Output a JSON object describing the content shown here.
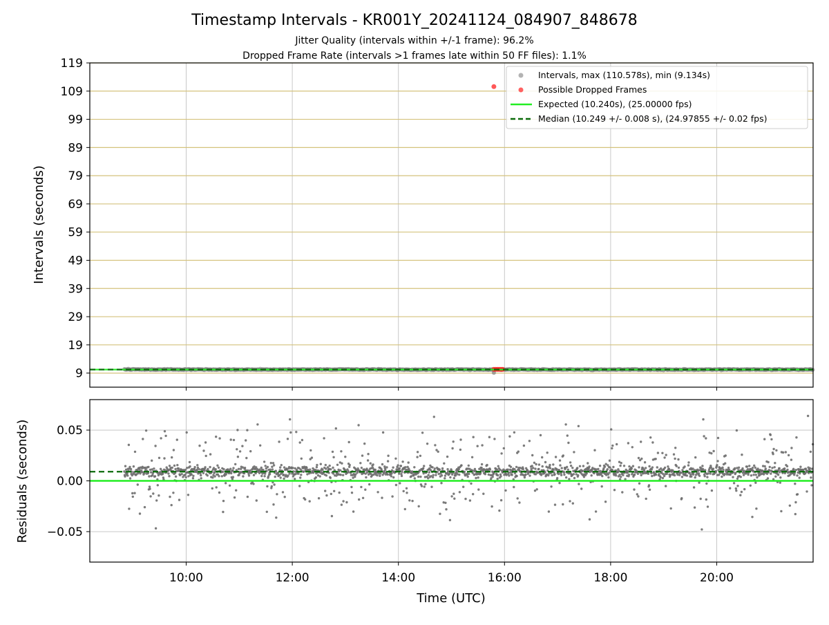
{
  "figure": {
    "title": "Timestamp Intervals - KR001Y_20241124_084907_848678",
    "subtitle_jitter": "Jitter Quality (intervals within +/-1 frame): 96.2%",
    "subtitle_dropped": "Dropped Frame Rate (intervals >1 frames late within 50 FF files): 1.1%"
  },
  "colors": {
    "intervals": "#808080",
    "dropped": "#ff2020",
    "expected": "#22ee22",
    "median": "#0a6a0a",
    "hgrid_top": "#d4c27c",
    "grid": "#c8c8c8"
  },
  "chart_data": [
    {
      "type": "scatter",
      "panel": "intervals",
      "ylabel": "Intervals (seconds)",
      "xlabel": "",
      "x_unit": "Time (UTC)",
      "xlim": [
        "08:11",
        "21:49"
      ],
      "ylim": [
        4,
        119
      ],
      "y_ticks": [
        "9",
        "19",
        "29",
        "39",
        "49",
        "59",
        "69",
        "79",
        "89",
        "99",
        "109",
        "119"
      ],
      "x_ticks": [
        "10:00",
        "12:00",
        "14:00",
        "16:00",
        "18:00",
        "20:00"
      ],
      "grid": "vertical gridlines at x ticks; horizontal gridlines at y ticks",
      "legend_position": "top-right",
      "legend": [
        "Intervals, max (110.578s), min (9.134s)",
        "Possible Dropped Frames",
        "Expected (10.240s), (25.00000 fps)",
        "Median (10.249 +/- 0.008 s), (24.97855 +/- 0.02 fps)"
      ],
      "series": [
        {
          "name": "Intervals, max (110.578s), min (9.134s)",
          "kind": "scatter",
          "x_range": [
            "08:50",
            "21:49"
          ],
          "y_typical": 10.249,
          "y_max": 110.578,
          "y_min": 9.134,
          "y_spread": 0.02
        },
        {
          "name": "Possible Dropped Frames",
          "kind": "scatter",
          "points": [
            {
              "x": "15:48",
              "y": 110.578
            },
            {
              "x": "15:48",
              "y": 10.3
            },
            {
              "x": "15:50",
              "y": 10.3
            },
            {
              "x": "15:52",
              "y": 10.3
            },
            {
              "x": "15:54",
              "y": 10.3
            },
            {
              "x": "15:56",
              "y": 10.3
            },
            {
              "x": "15:58",
              "y": 10.3
            }
          ]
        },
        {
          "name": "Expected (10.240s), (25.00000 fps)",
          "kind": "hline",
          "y": 10.24,
          "style": "solid"
        },
        {
          "name": "Median (10.249 +/- 0.008 s), (24.97855 +/- 0.02 fps)",
          "kind": "hline",
          "y": 10.249,
          "style": "dashed"
        }
      ]
    },
    {
      "type": "scatter",
      "panel": "residuals",
      "ylabel": "Residuals (seconds)",
      "xlabel": "Time (UTC)",
      "xlim": [
        "08:11",
        "21:49"
      ],
      "ylim": [
        -0.08,
        0.08
      ],
      "y_ticks": [
        "0.05",
        "0.00",
        "−0.05"
      ],
      "y_tick_values": [
        0.05,
        0.0,
        -0.05
      ],
      "x_ticks": [
        "10:00",
        "12:00",
        "14:00",
        "16:00",
        "18:00",
        "20:00"
      ],
      "grid": "on",
      "series": [
        {
          "name": "Residuals",
          "kind": "scatter",
          "x_range": [
            "08:50",
            "21:49"
          ],
          "center": 0.009,
          "core_spread": 0.004,
          "outlier_spread": 0.03
        },
        {
          "name": "Expected",
          "kind": "hline",
          "y": 0.0,
          "style": "solid"
        },
        {
          "name": "Median",
          "kind": "hline",
          "y": 0.009,
          "style": "dashed"
        }
      ]
    }
  ]
}
